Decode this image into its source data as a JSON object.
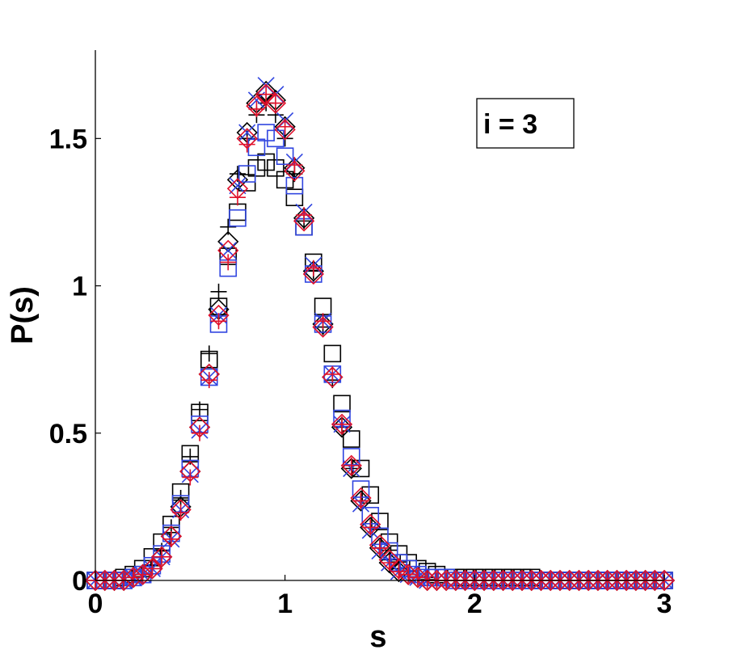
{
  "chart_data": {
    "type": "scatter",
    "title": "",
    "xlabel": "s",
    "ylabel": "P(s)",
    "xlim": [
      0,
      3
    ],
    "ylim": [
      0,
      1.8
    ],
    "xticks": [
      0,
      1,
      2,
      3
    ],
    "xtick_labels": [
      "0",
      "1",
      "2",
      "3"
    ],
    "yticks": [
      0,
      0.5,
      1,
      1.5
    ],
    "ytick_labels": [
      "0",
      "0.5",
      "1",
      "1.5"
    ],
    "grid": false,
    "annotation": "i = 3",
    "annotation_position": "top-right",
    "x": [
      0,
      0.05,
      0.1,
      0.15,
      0.2,
      0.25,
      0.3,
      0.35,
      0.4,
      0.45,
      0.5,
      0.55,
      0.6,
      0.65,
      0.7,
      0.75,
      0.8,
      0.85,
      0.9,
      0.95,
      1.0,
      1.05,
      1.1,
      1.15,
      1.2,
      1.25,
      1.3,
      1.35,
      1.4,
      1.45,
      1.5,
      1.55,
      1.6,
      1.65,
      1.7,
      1.75,
      1.8,
      1.85,
      1.9,
      1.95,
      2.0,
      2.05,
      2.1,
      2.15,
      2.2,
      2.25,
      2.3,
      2.35,
      2.4,
      2.45,
      2.5,
      2.55,
      2.6,
      2.65,
      2.7,
      2.75,
      2.8,
      2.85,
      2.9,
      2.95,
      3.0
    ],
    "series": [
      {
        "color": "#000000",
        "marker": "square",
        "values": [
          0,
          0,
          0,
          0.01,
          0.02,
          0.04,
          0.08,
          0.13,
          0.19,
          0.3,
          0.43,
          0.57,
          0.75,
          0.93,
          1.1,
          1.25,
          1.35,
          1.4,
          1.42,
          1.4,
          1.36,
          1.3,
          1.2,
          1.08,
          0.93,
          0.77,
          0.6,
          0.48,
          0.38,
          0.29,
          0.2,
          0.13,
          0.09,
          0.06,
          0.04,
          0.03,
          0.02,
          0.01,
          0.01,
          0.01,
          0.01,
          0.01,
          0.01,
          0.01,
          0.01,
          0.01,
          0.01,
          0,
          0,
          0,
          0,
          0,
          0,
          0,
          0,
          0,
          0,
          0,
          0,
          0,
          0
        ]
      },
      {
        "color": "#000000",
        "marker": "plus",
        "values": [
          0,
          0,
          0,
          0,
          0.01,
          0.02,
          0.05,
          0.1,
          0.18,
          0.28,
          0.42,
          0.58,
          0.77,
          0.98,
          1.2,
          1.38,
          1.5,
          1.58,
          1.62,
          1.58,
          1.5,
          1.38,
          1.22,
          1.05,
          0.86,
          0.68,
          0.52,
          0.38,
          0.27,
          0.18,
          0.11,
          0.07,
          0.04,
          0.02,
          0.01,
          0.01,
          0,
          0,
          0,
          0,
          0,
          0,
          0,
          0,
          0,
          0,
          0,
          0,
          0,
          0,
          0,
          0,
          0,
          0,
          0,
          0,
          0,
          0,
          0,
          0,
          0
        ]
      },
      {
        "color": "#000000",
        "marker": "diamond",
        "values": [
          0,
          0,
          0,
          0,
          0.01,
          0.02,
          0.04,
          0.08,
          0.15,
          0.25,
          0.37,
          0.52,
          0.7,
          0.92,
          1.15,
          1.36,
          1.52,
          1.62,
          1.66,
          1.63,
          1.54,
          1.4,
          1.23,
          1.05,
          0.87,
          0.69,
          0.52,
          0.38,
          0.27,
          0.18,
          0.11,
          0.06,
          0.03,
          0.02,
          0.01,
          0,
          0,
          0,
          0,
          0,
          0,
          0,
          0,
          0,
          0,
          0,
          0,
          0,
          0,
          0,
          0,
          0,
          0,
          0,
          0,
          0,
          0,
          0,
          0,
          0,
          0
        ]
      },
      {
        "color": "#3045e0",
        "marker": "square",
        "values": [
          0,
          0,
          0,
          0,
          0.01,
          0.02,
          0.05,
          0.09,
          0.16,
          0.26,
          0.38,
          0.53,
          0.69,
          0.87,
          1.06,
          1.23,
          1.38,
          1.47,
          1.52,
          1.5,
          1.44,
          1.34,
          1.2,
          1.04,
          0.87,
          0.7,
          0.55,
          0.42,
          0.31,
          0.22,
          0.15,
          0.1,
          0.06,
          0.04,
          0.02,
          0.01,
          0.01,
          0.01,
          0,
          0,
          0,
          0,
          0,
          0,
          0,
          0,
          0,
          0,
          0,
          0,
          0,
          0,
          0,
          0,
          0,
          0,
          0,
          0,
          0,
          0,
          0
        ]
      },
      {
        "color": "#3045e0",
        "marker": "x",
        "values": [
          0,
          0,
          0,
          0,
          0.01,
          0.02,
          0.04,
          0.08,
          0.14,
          0.24,
          0.36,
          0.51,
          0.69,
          0.9,
          1.12,
          1.34,
          1.52,
          1.63,
          1.68,
          1.65,
          1.56,
          1.42,
          1.25,
          1.07,
          0.88,
          0.7,
          0.53,
          0.38,
          0.26,
          0.17,
          0.1,
          0.06,
          0.03,
          0.02,
          0.01,
          0,
          0,
          0,
          0,
          0,
          0,
          0,
          0,
          0,
          0,
          0,
          0,
          0,
          0,
          0,
          0,
          0,
          0,
          0,
          0,
          0,
          0,
          0,
          0,
          0,
          0
        ]
      },
      {
        "color": "#e0102a",
        "marker": "plus",
        "values": [
          0,
          0,
          0,
          0,
          0.01,
          0.02,
          0.04,
          0.08,
          0.14,
          0.23,
          0.35,
          0.5,
          0.68,
          0.88,
          1.08,
          1.3,
          1.48,
          1.6,
          1.65,
          1.62,
          1.54,
          1.41,
          1.24,
          1.06,
          0.88,
          0.7,
          0.53,
          0.39,
          0.27,
          0.18,
          0.11,
          0.06,
          0.03,
          0.02,
          0.01,
          0,
          0,
          0,
          0,
          0,
          0,
          0,
          0,
          0,
          0,
          0,
          0,
          0,
          0,
          0,
          0,
          0,
          0,
          0,
          0,
          0,
          0,
          0,
          0,
          0,
          0
        ]
      },
      {
        "color": "#e0102a",
        "marker": "diamond",
        "values": [
          0,
          0,
          0,
          0,
          0.01,
          0.02,
          0.04,
          0.08,
          0.15,
          0.24,
          0.37,
          0.52,
          0.7,
          0.9,
          1.12,
          1.33,
          1.5,
          1.61,
          1.65,
          1.62,
          1.53,
          1.39,
          1.22,
          1.04,
          0.86,
          0.69,
          0.53,
          0.39,
          0.28,
          0.19,
          0.12,
          0.07,
          0.04,
          0.02,
          0.01,
          0,
          0,
          0,
          0,
          0,
          0,
          0,
          0,
          0,
          0,
          0,
          0,
          0,
          0,
          0,
          0,
          0,
          0,
          0,
          0,
          0,
          0,
          0,
          0,
          0,
          0
        ]
      }
    ]
  }
}
